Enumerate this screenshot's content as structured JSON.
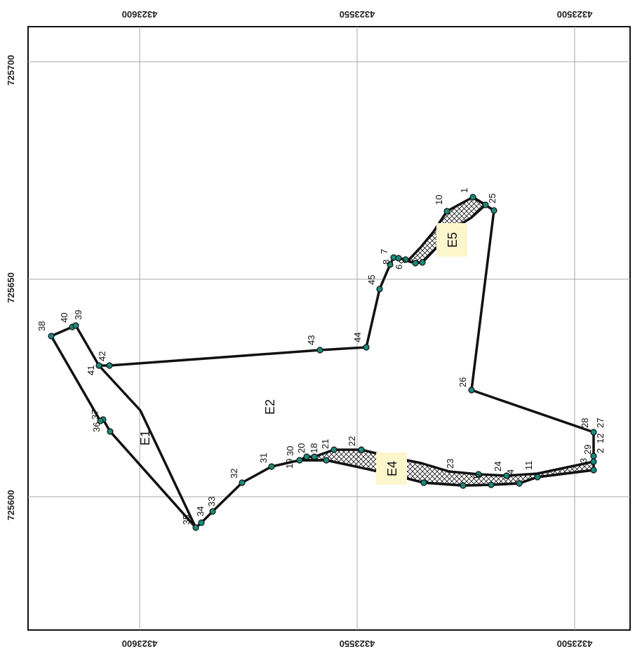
{
  "axes": {
    "top_ticks": [
      "4323600",
      "4323550",
      "4323500"
    ],
    "bottom_ticks": [
      "4323600",
      "4323550",
      "4323500"
    ],
    "left_ticks": [
      "725700",
      "725650",
      "725600"
    ]
  },
  "style": {
    "fill_hatch": "#111111",
    "label_bg": "#fbf6cc",
    "vertex_color": "#1b8a7a",
    "line_color": "#111111"
  },
  "zones": [
    {
      "id": "E1",
      "label": "E1"
    },
    {
      "id": "E2",
      "label": "E2"
    },
    {
      "id": "E4",
      "label": "E4"
    },
    {
      "id": "E5",
      "label": "E5"
    }
  ],
  "vertex_labels": [
    "1",
    "25",
    "10",
    "26",
    "7",
    "8",
    "6",
    "9",
    "45",
    "44",
    "43",
    "42",
    "41",
    "40",
    "39",
    "38",
    "37",
    "36",
    "35",
    "34",
    "33",
    "32",
    "31",
    "30",
    "20",
    "19",
    "18",
    "21",
    "22",
    "23",
    "24",
    "4",
    "11",
    "5",
    "3",
    "29",
    "2",
    "12",
    "28",
    "27"
  ]
}
